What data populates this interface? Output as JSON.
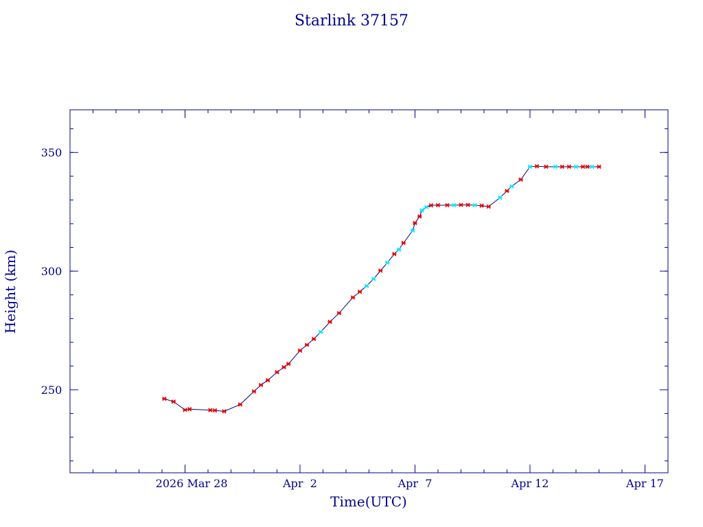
{
  "chart_data": {
    "type": "line",
    "title": "Starlink 37157",
    "xlabel": "Time(UTC)",
    "ylabel": "Height (km)",
    "x_ticks": [
      {
        "date": "2026-03-28",
        "label": "2026 Mar 28"
      },
      {
        "date": "2026-04-02",
        "label": "Apr  2"
      },
      {
        "date": "2026-04-07",
        "label": "Apr  7"
      },
      {
        "date": "2026-04-12",
        "label": "Apr 12"
      },
      {
        "date": "2026-04-17",
        "label": "Apr 17"
      }
    ],
    "xlim": [
      "2026-03-23T00:00",
      "2026-04-18T00:00"
    ],
    "y_ticks": [
      250,
      300,
      350
    ],
    "ylim": [
      215,
      368
    ],
    "grid": false,
    "colors": {
      "axes": "#00008b",
      "line": "#00008b",
      "marker_primary": "#dd0000",
      "marker_secondary": "#00e5ff"
    },
    "series": [
      {
        "points": [
          {
            "t": "2026-03-27T02:24",
            "h": 246.2,
            "m": "r"
          },
          {
            "t": "2026-03-27T12:00",
            "h": 245.0,
            "m": "r"
          },
          {
            "t": "2026-03-28T00:00",
            "h": 241.5,
            "m": "r"
          },
          {
            "t": "2026-03-28T04:48",
            "h": 241.8,
            "m": "r"
          },
          {
            "t": "2026-03-29T02:24",
            "h": 241.4,
            "m": "r"
          },
          {
            "t": "2026-03-29T07:12",
            "h": 241.3,
            "m": "r"
          },
          {
            "t": "2026-03-29T16:48",
            "h": 240.9,
            "m": "r"
          },
          {
            "t": "2026-03-30T09:36",
            "h": 243.8,
            "m": "r"
          },
          {
            "t": "2026-03-31T00:00",
            "h": 249.3,
            "m": "r"
          },
          {
            "t": "2026-03-31T07:12",
            "h": 252.0,
            "m": "r"
          },
          {
            "t": "2026-03-31T14:24",
            "h": 254.0,
            "m": "r"
          },
          {
            "t": "2026-04-01T00:00",
            "h": 257.4,
            "m": "r"
          },
          {
            "t": "2026-04-01T07:12",
            "h": 259.5,
            "m": "r"
          },
          {
            "t": "2026-04-01T12:00",
            "h": 260.9,
            "m": "r"
          },
          {
            "t": "2026-04-02T00:00",
            "h": 266.5,
            "m": "r"
          },
          {
            "t": "2026-04-02T07:12",
            "h": 268.9,
            "m": "r"
          },
          {
            "t": "2026-04-02T14:24",
            "h": 271.4,
            "m": "r"
          },
          {
            "t": "2026-04-02T21:36",
            "h": 274.4,
            "m": "c"
          },
          {
            "t": "2026-04-03T07:12",
            "h": 278.6,
            "m": "r"
          },
          {
            "t": "2026-04-03T16:48",
            "h": 282.3,
            "m": "r"
          },
          {
            "t": "2026-04-04T07:12",
            "h": 288.9,
            "m": "r"
          },
          {
            "t": "2026-04-04T14:24",
            "h": 291.3,
            "m": "r"
          },
          {
            "t": "2026-04-04T21:36",
            "h": 293.8,
            "m": "c"
          },
          {
            "t": "2026-04-05T04:48",
            "h": 296.7,
            "m": "c"
          },
          {
            "t": "2026-04-05T12:00",
            "h": 300.2,
            "m": "r"
          },
          {
            "t": "2026-04-05T19:12",
            "h": 303.6,
            "m": "c"
          },
          {
            "t": "2026-04-06T02:24",
            "h": 307.2,
            "m": "r"
          },
          {
            "t": "2026-04-06T07:12",
            "h": 309.1,
            "m": "c"
          },
          {
            "t": "2026-04-06T12:00",
            "h": 311.9,
            "m": "r"
          },
          {
            "t": "2026-04-06T21:36",
            "h": 317.1,
            "m": "c"
          },
          {
            "t": "2026-04-07T00:00",
            "h": 320.3,
            "m": "r"
          },
          {
            "t": "2026-04-07T04:48",
            "h": 323.0,
            "m": "r"
          },
          {
            "t": "2026-04-07T07:12",
            "h": 325.6,
            "m": "c"
          },
          {
            "t": "2026-04-07T12:00",
            "h": 327.0,
            "m": "c"
          },
          {
            "t": "2026-04-07T16:48",
            "h": 327.7,
            "m": "r"
          },
          {
            "t": "2026-04-08T00:00",
            "h": 327.8,
            "m": "r"
          },
          {
            "t": "2026-04-08T09:36",
            "h": 327.8,
            "m": "r"
          },
          {
            "t": "2026-04-08T16:48",
            "h": 327.8,
            "m": "c"
          },
          {
            "t": "2026-04-09T00:00",
            "h": 327.9,
            "m": "r"
          },
          {
            "t": "2026-04-09T07:12",
            "h": 327.9,
            "m": "r"
          },
          {
            "t": "2026-04-09T14:24",
            "h": 327.8,
            "m": "c"
          },
          {
            "t": "2026-04-09T21:36",
            "h": 327.6,
            "m": "r"
          },
          {
            "t": "2026-04-10T04:48",
            "h": 327.2,
            "m": "r"
          },
          {
            "t": "2026-04-10T16:48",
            "h": 331.0,
            "m": "c"
          },
          {
            "t": "2026-04-11T00:00",
            "h": 333.8,
            "m": "r"
          },
          {
            "t": "2026-04-11T04:48",
            "h": 335.7,
            "m": "c"
          },
          {
            "t": "2026-04-11T14:24",
            "h": 338.6,
            "m": "r"
          },
          {
            "t": "2026-04-12T00:00",
            "h": 344.0,
            "m": "c"
          },
          {
            "t": "2026-04-12T07:12",
            "h": 344.2,
            "m": "r"
          },
          {
            "t": "2026-04-12T16:48",
            "h": 344.0,
            "m": "r"
          },
          {
            "t": "2026-04-13T02:24",
            "h": 344.0,
            "m": "c"
          },
          {
            "t": "2026-04-13T09:36",
            "h": 344.0,
            "m": "r"
          },
          {
            "t": "2026-04-13T16:48",
            "h": 344.0,
            "m": "r"
          },
          {
            "t": "2026-04-14T00:00",
            "h": 344.0,
            "m": "c"
          },
          {
            "t": "2026-04-14T07:12",
            "h": 344.0,
            "m": "r"
          },
          {
            "t": "2026-04-14T12:00",
            "h": 344.0,
            "m": "r"
          },
          {
            "t": "2026-04-14T16:48",
            "h": 344.0,
            "m": "c"
          },
          {
            "t": "2026-04-15T00:00",
            "h": 344.0,
            "m": "r"
          }
        ]
      }
    ]
  }
}
